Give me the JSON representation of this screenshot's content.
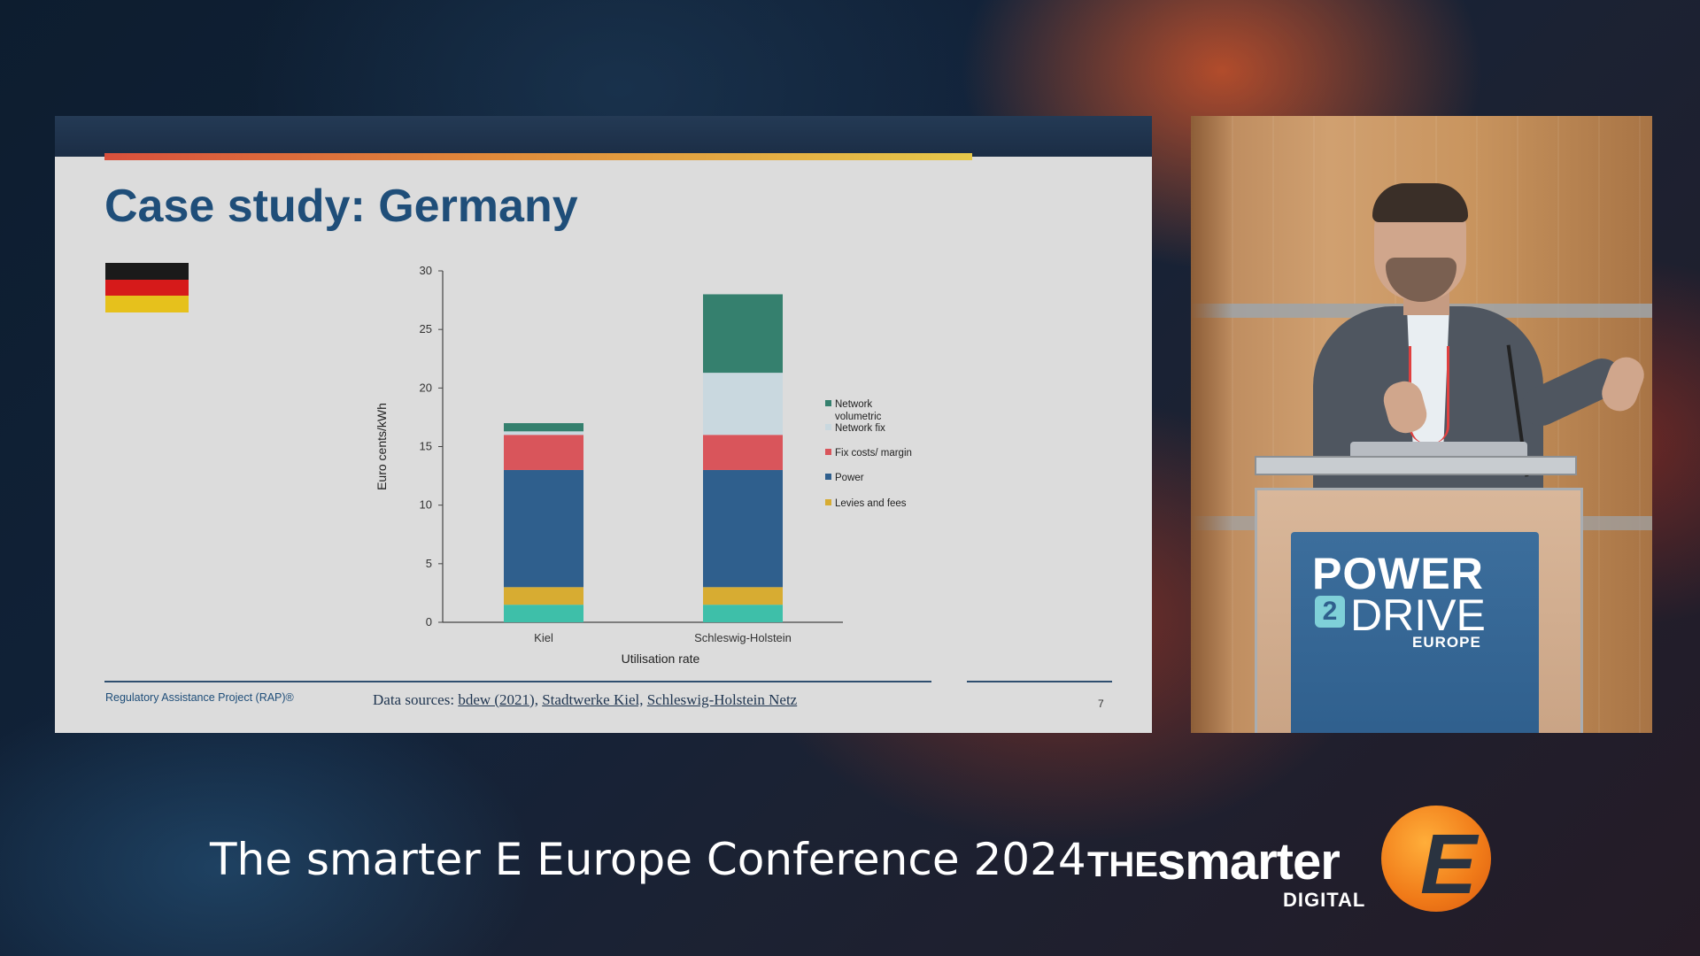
{
  "slide": {
    "title": "Case study: Germany",
    "flag": {
      "name": "germany-flag",
      "colors": [
        "#1a1a1a",
        "#d61a1a",
        "#e6c11c"
      ]
    },
    "footer": {
      "organization": "Regulatory Assistance Project (RAP)®",
      "sources_prefix": "Data sources:",
      "sources": [
        "bdew (2021),",
        "Stadtwerke Kiel,",
        "Schleswig-Holstein Netz"
      ],
      "page_number": "7"
    }
  },
  "chart_data": {
    "type": "bar",
    "stacked": true,
    "title": "",
    "xlabel": "Utilisation rate",
    "ylabel": "Euro cents/kWh",
    "ylim": [
      0,
      30
    ],
    "yticks": [
      0,
      5,
      10,
      15,
      20,
      25,
      30
    ],
    "categories": [
      "Kiel",
      "Schleswig-Holstein"
    ],
    "series": [
      {
        "name": "",
        "color": "#3ebfa9",
        "values": [
          1.5,
          1.5
        ]
      },
      {
        "name": "Levies and fees",
        "color": "#d7ac32",
        "values": [
          1.5,
          1.5
        ]
      },
      {
        "name": "Power",
        "color": "#2f5f8d",
        "values": [
          10,
          10
        ]
      },
      {
        "name": "Fix costs/ margin",
        "color": "#d9555b",
        "values": [
          3,
          3
        ]
      },
      {
        "name": "Network fix",
        "color": "#c9d8df",
        "values": [
          0.3,
          5.3
        ]
      },
      {
        "name": "Network volumetric",
        "color": "#35806e",
        "values": [
          0.7,
          6.7
        ]
      }
    ],
    "legend": {
      "position": "right",
      "entries": [
        {
          "lines": [
            "Network",
            "volumetric"
          ],
          "color": "#35806e"
        },
        {
          "lines": [
            "Network fix"
          ],
          "color": "#c9d8df"
        },
        {
          "lines": [
            "Fix costs/ margin"
          ],
          "color": "#d9555b"
        },
        {
          "lines": [
            "Power"
          ],
          "color": "#2f5f8d"
        },
        {
          "lines": [
            "Levies and fees"
          ],
          "color": "#d7ac32"
        }
      ]
    }
  },
  "speaker_video": {
    "lectern_brand": {
      "line1": "POWER",
      "digit": "2",
      "line2": "DRIVE",
      "line3": "EUROPE"
    }
  },
  "caption": {
    "conference_title": "The smarter E Europe Conference 2024",
    "logo": {
      "the": "THE",
      "smarter": "smarter",
      "digital": "DIGITAL",
      "letter": "E",
      "accent": "#f07a18"
    }
  }
}
